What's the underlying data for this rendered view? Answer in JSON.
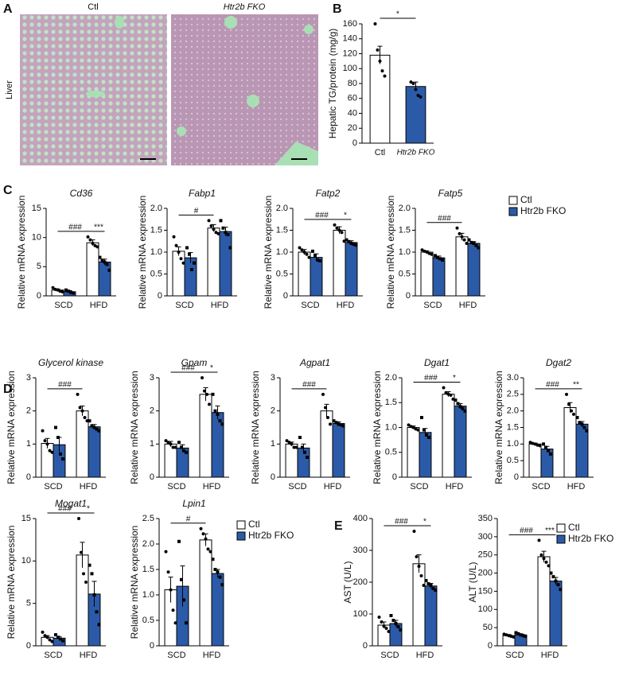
{
  "panel_a": {
    "letter": "A",
    "columns": [
      "Ctl",
      "Htr2b FKO"
    ],
    "row": "Liver"
  },
  "chart_data": [
    {
      "panel": "B",
      "type": "bar",
      "ylabel": "Hepatic TG/protein (mg/g)",
      "categories": [
        "Ctl",
        "Htr2b FKO"
      ],
      "series": [
        {
          "colors": [
            "#ffffff",
            "#2b5ba8"
          ],
          "values": [
            118,
            76
          ],
          "errors": [
            12,
            6
          ],
          "points": [
            [
              160,
              125,
              110,
              97,
              90
            ],
            [
              82,
              80,
              72,
              64,
              62
            ]
          ]
        }
      ],
      "ylim": [
        0,
        160
      ],
      "yticks": [
        0,
        20,
        40,
        60,
        80,
        100,
        120,
        140,
        160
      ],
      "sig": "*"
    },
    {
      "panel": "C",
      "type": "bar",
      "title": "Cd36",
      "ylabel": "Relative mRNA expression",
      "categories": [
        "SCD",
        "HFD"
      ],
      "series": [
        {
          "color": "#ffffff",
          "values": [
            1,
            9.1
          ],
          "errors": [
            0.2,
            0.5
          ],
          "points": [
            [
              1.4,
              1.1,
              1.0,
              0.8,
              0.7
            ],
            [
              10.1,
              9.6,
              9.0,
              8.6,
              8.4
            ]
          ]
        },
        {
          "color": "#2b5ba8",
          "values": [
            0.7,
            5.8
          ],
          "errors": [
            0.2,
            0.5
          ],
          "points": [
            [
              1.0,
              0.8,
              0.6,
              0.5
            ],
            [
              6.6,
              6.1,
              5.8,
              5.4,
              4.4
            ]
          ]
        }
      ],
      "ylim": [
        0,
        15
      ],
      "yticks": [
        0,
        5,
        10,
        15
      ],
      "diet_sig": "###",
      "genotype_sig": "***"
    },
    {
      "type": "bar",
      "title": "Fabp1",
      "ylabel": "Relative mRNA expression",
      "categories": [
        "SCD",
        "HFD"
      ],
      "series": [
        {
          "color": "#ffffff",
          "values": [
            1.02,
            1.55
          ],
          "errors": [
            0.1,
            0.08
          ],
          "points": [
            [
              1.35,
              1.15,
              1.0,
              0.85,
              0.75
            ],
            [
              1.72,
              1.6,
              1.52,
              1.45,
              1.42
            ]
          ]
        },
        {
          "color": "#2b5ba8",
          "values": [
            0.87,
            1.47
          ],
          "errors": [
            0.12,
            0.1
          ],
          "points": [
            [
              1.1,
              0.95,
              0.6,
              0.75
            ],
            [
              1.72,
              1.55,
              1.45,
              1.4,
              1.1
            ]
          ]
        }
      ],
      "ylim": [
        0,
        2
      ],
      "yticks": [
        0,
        0.5,
        {
          "value": 1,
          "label": "1.0"
        },
        1.5,
        {
          "value": 2,
          "label": "2.0"
        }
      ],
      "diet_sig": "#"
    },
    {
      "type": "bar",
      "title": "Fatp2",
      "ylabel": "Relative mRNA expression",
      "categories": [
        "SCD",
        "HFD"
      ],
      "series": [
        {
          "color": "#ffffff",
          "values": [
            1.0,
            1.5
          ],
          "errors": [
            0.06,
            0.08
          ],
          "points": [
            [
              1.1,
              1.05,
              1.0,
              0.95,
              0.88
            ],
            [
              1.62,
              1.55,
              1.5,
              1.45,
              1.25
            ]
          ]
        },
        {
          "color": "#2b5ba8",
          "values": [
            0.88,
            1.22
          ],
          "errors": [
            0.08,
            0.04
          ],
          "points": [
            [
              1.02,
              0.92,
              0.82,
              0.8
            ],
            [
              1.28,
              1.24,
              1.2,
              1.18,
              1.16
            ]
          ]
        }
      ],
      "ylim": [
        0,
        2
      ],
      "yticks": [
        0,
        0.5,
        {
          "value": 1,
          "label": "1.0"
        },
        1.5,
        {
          "value": 2,
          "label": "2.0"
        }
      ],
      "diet_sig": "###",
      "genotype_sig": "*"
    },
    {
      "type": "bar",
      "title": "Fatp5",
      "ylabel": "Relative mRNA expression",
      "categories": [
        "SCD",
        "HFD"
      ],
      "legend": true,
      "series": [
        {
          "name": "Ctl",
          "color": "#ffffff",
          "values": [
            1.0,
            1.35
          ],
          "errors": [
            0.03,
            0.08
          ],
          "points": [
            [
              1.05,
              1.02,
              1.0,
              0.97,
              0.95
            ],
            [
              1.55,
              1.42,
              1.35,
              1.28,
              1.2
            ]
          ]
        },
        {
          "name": "Htr2b FKO",
          "color": "#2b5ba8",
          "values": [
            0.87,
            1.2
          ],
          "errors": [
            0.04,
            0.04
          ],
          "points": [
            [
              0.92,
              0.88,
              0.85,
              0.82
            ],
            [
              1.28,
              1.22,
              1.2,
              1.15,
              1.1
            ]
          ]
        }
      ],
      "ylim": [
        0,
        2
      ],
      "yticks": [
        0,
        0.5,
        {
          "value": 1,
          "label": "1.0"
        },
        1.5,
        {
          "value": 2,
          "label": "2.0"
        }
      ],
      "diet_sig": "###"
    },
    {
      "panel": "D",
      "type": "bar",
      "title": "Glycerol kinase",
      "ylabel": "Relative mRNA expression",
      "categories": [
        "SCD",
        "HFD"
      ],
      "series": [
        {
          "color": "#ffffff",
          "values": [
            1.02,
            2.0
          ],
          "errors": [
            0.15,
            0.15
          ],
          "points": [
            [
              1.4,
              1.1,
              1.0,
              0.8,
              0.75
            ],
            [
              2.5,
              2.1,
              2.0,
              1.8,
              1.7
            ]
          ]
        },
        {
          "color": "#2b5ba8",
          "values": [
            0.98,
            1.52
          ],
          "errors": [
            0.22,
            0.07
          ],
          "points": [
            [
              1.5,
              1.2,
              0.7,
              0.55
            ],
            [
              1.7,
              1.55,
              1.5,
              1.45,
              1.4
            ]
          ]
        }
      ],
      "ylim": [
        0,
        3
      ],
      "yticks": [
        0,
        1,
        2,
        3
      ],
      "diet_sig": "###"
    },
    {
      "type": "bar",
      "title": "Gpam",
      "ylabel": "Relative mRNA expression",
      "categories": [
        "SCD",
        "HFD"
      ],
      "series": [
        {
          "color": "#ffffff",
          "values": [
            1.0,
            2.5
          ],
          "errors": [
            0.08,
            0.2
          ],
          "points": [
            [
              1.1,
              1.05,
              1.0,
              0.9,
              0.9
            ],
            [
              3.0,
              2.6,
              2.5,
              2.2
            ]
          ]
        },
        {
          "color": "#2b5ba8",
          "values": [
            0.88,
            1.95
          ],
          "errors": [
            0.1,
            0.2
          ],
          "points": [
            [
              1.05,
              0.9,
              0.8,
              0.75
            ],
            [
              2.5,
              2.0,
              1.9,
              1.7,
              1.6
            ]
          ]
        }
      ],
      "ylim": [
        0,
        3
      ],
      "yticks": [
        0,
        1,
        2,
        3
      ],
      "diet_sig": "###",
      "genotype_sig": "*"
    },
    {
      "type": "bar",
      "title": "Agpat1",
      "ylabel": "Relative mRNA expression",
      "categories": [
        "SCD",
        "HFD"
      ],
      "series": [
        {
          "color": "#ffffff",
          "values": [
            1.0,
            2.0
          ],
          "errors": [
            0.06,
            0.2
          ],
          "points": [
            [
              1.1,
              1.05,
              1.0,
              0.9,
              0.9
            ],
            [
              2.5,
              2.1,
              1.8,
              1.6
            ]
          ]
        },
        {
          "color": "#2b5ba8",
          "values": [
            0.88,
            1.62
          ],
          "errors": [
            0.12,
            0.05
          ],
          "points": [
            [
              1.2,
              0.9,
              0.75,
              0.6
            ],
            [
              1.7,
              1.65,
              1.6,
              1.58,
              1.55
            ]
          ]
        }
      ],
      "ylim": [
        0,
        3
      ],
      "yticks": [
        0,
        1,
        2,
        3
      ],
      "diet_sig": "###"
    },
    {
      "type": "bar",
      "title": "Dgat1",
      "ylabel": "Relative mRNA expression",
      "categories": [
        "SCD",
        "HFD"
      ],
      "series": [
        {
          "color": "#ffffff",
          "values": [
            1.0,
            1.67
          ],
          "errors": [
            0.03,
            0.05
          ],
          "points": [
            [
              1.05,
              1.02,
              1.0,
              0.97,
              0.95
            ],
            [
              1.8,
              1.7,
              1.67,
              1.65,
              1.57
            ]
          ]
        },
        {
          "color": "#2b5ba8",
          "values": [
            0.9,
            1.43
          ],
          "errors": [
            0.08,
            0.05
          ],
          "points": [
            [
              1.2,
              0.95,
              0.85,
              0.8
            ],
            [
              1.55,
              1.48,
              1.42,
              1.38,
              1.33
            ]
          ]
        }
      ],
      "ylim": [
        0,
        2
      ],
      "yticks": [
        0,
        0.5,
        {
          "value": 1,
          "label": "1.0"
        },
        1.5,
        {
          "value": 2,
          "label": "2.0"
        }
      ],
      "diet_sig": "###",
      "genotype_sig": "*"
    },
    {
      "type": "bar",
      "title": "Dgat2",
      "ylabel": "Relative mRNA expression",
      "categories": [
        "SCD",
        "HFD"
      ],
      "series": [
        {
          "color": "#ffffff",
          "values": [
            1.0,
            2.1
          ],
          "errors": [
            0.03,
            0.15
          ],
          "points": [
            [
              1.05,
              1.02,
              1.0,
              0.97,
              0.95
            ],
            [
              2.5,
              2.2,
              2.0,
              1.9
            ]
          ]
        },
        {
          "color": "#2b5ba8",
          "values": [
            0.85,
            1.6
          ],
          "errors": [
            0.08,
            0.08
          ],
          "points": [
            [
              1.0,
              0.9,
              0.8,
              0.7
            ],
            [
              1.8,
              1.65,
              1.6,
              1.5,
              1.4
            ]
          ]
        }
      ],
      "ylim": [
        0,
        3
      ],
      "yticks": [
        0,
        0.5,
        {
          "value": 1,
          "label": "1.0"
        },
        1.5,
        {
          "value": 2,
          "label": "2.0"
        },
        2.5,
        {
          "value": 3,
          "label": "3.0"
        }
      ],
      "diet_sig": "###",
      "genotype_sig": "**"
    },
    {
      "type": "bar",
      "title": "Mogat1",
      "ylabel": "Relative mRNA expression",
      "categories": [
        "SCD",
        "HFD"
      ],
      "series": [
        {
          "color": "#ffffff",
          "values": [
            1.0,
            10.7
          ],
          "errors": [
            0.2,
            1.5
          ],
          "points": [
            [
              1.6,
              1.2,
              1.0,
              0.7,
              0.5
            ],
            [
              15,
              11,
              8.5,
              7.5
            ]
          ]
        },
        {
          "color": "#2b5ba8",
          "values": [
            0.9,
            6.1
          ],
          "errors": [
            0.2,
            1.5
          ],
          "points": [
            [
              1.3,
              1.0,
              0.8,
              0.6
            ],
            [
              9.5,
              8.5,
              6.0,
              4.0,
              2.5
            ]
          ]
        }
      ],
      "ylim": [
        0,
        15
      ],
      "yticks": [
        0,
        5,
        10,
        15
      ],
      "diet_sig": "###",
      "genotype_sig": "*"
    },
    {
      "type": "bar",
      "title": "Lpin1",
      "ylabel": "Relative mRNA expression",
      "categories": [
        "SCD",
        "HFD"
      ],
      "legend": true,
      "series": [
        {
          "name": "Ctl",
          "color": "#ffffff",
          "values": [
            1.1,
            2.08
          ],
          "errors": [
            0.25,
            0.12
          ],
          "points": [
            [
              1.85,
              1.45,
              1.1,
              0.7,
              0.45
            ],
            [
              2.3,
              2.2,
              2.1,
              1.9,
              1.85
            ]
          ]
        },
        {
          "name": "Htr2b FKO",
          "color": "#2b5ba8",
          "values": [
            1.17,
            1.42
          ],
          "errors": [
            0.4,
            0.08
          ],
          "points": [
            [
              2.05,
              1.3,
              0.9,
              0.45
            ],
            [
              1.7,
              1.5,
              1.45,
              1.35,
              1.2
            ]
          ]
        }
      ],
      "ylim": [
        0,
        2.5
      ],
      "yticks": [
        0,
        0.5,
        {
          "value": 1,
          "label": "1.0"
        },
        1.5,
        {
          "value": 2,
          "label": "2.0"
        },
        2.5
      ],
      "diet_sig": "#"
    },
    {
      "panel": "E",
      "type": "bar",
      "ylabel": "AST (U/L)",
      "categories": [
        "SCD",
        "HFD"
      ],
      "series": [
        {
          "color": "#ffffff",
          "values": [
            65,
            258
          ],
          "errors": [
            10,
            28
          ],
          "points": [
            [
              90,
              75,
              62,
              55,
              45
            ],
            [
              360,
              280,
              250,
              220,
              190
            ]
          ]
        },
        {
          "color": "#2b5ba8",
          "values": [
            70,
            188
          ],
          "errors": [
            10,
            8
          ],
          "points": [
            [
              95,
              80,
              70,
              60,
              50
            ],
            [
              205,
              195,
              190,
              180,
              175
            ]
          ]
        }
      ],
      "ylim": [
        0,
        400
      ],
      "yticks": [
        0,
        100,
        200,
        300,
        400
      ],
      "diet_sig": "###",
      "genotype_sig": "*"
    },
    {
      "type": "bar",
      "ylabel": "ALT (U/L)",
      "categories": [
        "SCD",
        "HFD"
      ],
      "legend": true,
      "series": [
        {
          "name": "Ctl",
          "color": "#ffffff",
          "values": [
            28,
            245
          ],
          "errors": [
            3,
            15
          ],
          "points": [
            [
              32,
              30,
              28,
              26,
              24
            ],
            [
              290,
              250,
              240,
              230,
              220
            ]
          ]
        },
        {
          "name": "Htr2b FKO",
          "color": "#2b5ba8",
          "values": [
            30,
            178
          ],
          "errors": [
            3,
            10
          ],
          "points": [
            [
              36,
              33,
              30,
              28,
              26
            ],
            [
              200,
              190,
              178,
              168,
              155
            ]
          ]
        }
      ],
      "ylim": [
        0,
        350
      ],
      "yticks": [
        0,
        50,
        100,
        150,
        200,
        250,
        300,
        350
      ],
      "diet_sig": "###",
      "genotype_sig": "***"
    }
  ]
}
